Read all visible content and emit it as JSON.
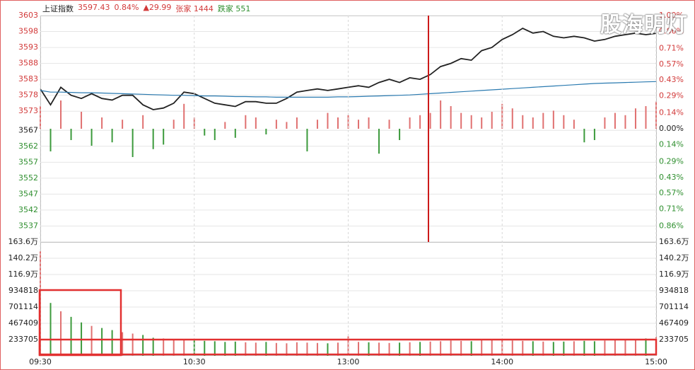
{
  "header": {
    "name": "上证指数",
    "price": "3597.43",
    "pct": "0.84%",
    "change": "▲29.99",
    "up_label": "张家",
    "up_count": "1444",
    "down_label": "跌家",
    "down_count": "551"
  },
  "watermark": "股海明灯",
  "chart_data": [
    {
      "type": "line",
      "x": [
        0,
        4,
        8,
        12,
        16,
        20,
        24,
        28,
        32,
        36,
        40,
        44,
        48,
        52,
        56,
        60,
        64,
        68,
        72,
        76,
        80,
        84,
        88,
        92,
        96,
        100,
        104,
        108,
        112,
        116,
        120,
        124,
        128,
        132,
        136,
        140,
        144,
        148,
        152,
        156,
        160,
        164,
        168,
        172,
        176,
        180,
        184,
        188,
        192,
        196,
        200,
        204,
        208,
        212,
        216,
        220,
        224,
        228,
        232,
        236,
        240
      ],
      "xlim": [
        0,
        240
      ],
      "ylim": [
        3532,
        3603
      ],
      "yticks": [
        3603,
        3598,
        3593,
        3588,
        3583,
        3578,
        3573,
        3567,
        3562,
        3557,
        3552,
        3547,
        3542,
        3537
      ],
      "y2lim": [
        -1,
        1
      ],
      "y2ticks": [
        {
          "value": 1,
          "label": "1.00%"
        },
        {
          "value": 0.86,
          "label": "0.86%"
        },
        {
          "value": 0.71,
          "label": "0.71%"
        },
        {
          "value": 0.57,
          "label": "0.57%"
        },
        {
          "value": 0.43,
          "label": "0.43%"
        },
        {
          "value": 0.29,
          "label": "0.29%"
        },
        {
          "value": 0.14,
          "label": "0.14%"
        },
        {
          "value": 0,
          "label": "0.00%"
        },
        {
          "value": -0.14,
          "label": "0.14%"
        },
        {
          "value": -0.29,
          "label": "0.29%"
        },
        {
          "value": -0.43,
          "label": "0.43%"
        },
        {
          "value": -0.57,
          "label": "0.57%"
        },
        {
          "value": -0.71,
          "label": "0.71%"
        },
        {
          "value": -0.86,
          "label": "0.86%"
        }
      ],
      "grid": true,
      "series": [
        {
          "type": "line",
          "color": "#222222",
          "values": [
            3580,
            3575,
            3580.5,
            3578,
            3577,
            3578.5,
            3577,
            3576.5,
            3578,
            3578,
            3575,
            3573.5,
            3574,
            3575.5,
            3579,
            3578.5,
            3577,
            3575.5,
            3575,
            3574.5,
            3576,
            3576,
            3575.5,
            3575.5,
            3577,
            3579,
            3579.5,
            3580,
            3579.5,
            3580,
            3580.5,
            3581,
            3580.5,
            3582,
            3583,
            3582,
            3583.5,
            3583,
            3584.5,
            3587,
            3588,
            3589.5,
            3589,
            3592,
            3593,
            3595.5,
            3597,
            3599,
            3597.5,
            3598,
            3596.5,
            3596,
            3596.5,
            3596,
            3595,
            3595.5,
            3596.5,
            3597,
            3597.5,
            3597,
            3597.43
          ]
        },
        {
          "type": "line",
          "color": "#2a7ab0",
          "values": [
            3579.5,
            3579,
            3579,
            3578.9,
            3578.8,
            3578.8,
            3578.7,
            3578.6,
            3578.5,
            3578.4,
            3578.3,
            3578.2,
            3578.1,
            3578,
            3578,
            3577.9,
            3577.8,
            3577.8,
            3577.7,
            3577.6,
            3577.6,
            3577.5,
            3577.5,
            3577.4,
            3577.4,
            3577.4,
            3577.4,
            3577.4,
            3577.4,
            3577.5,
            3577.5,
            3577.6,
            3577.7,
            3577.8,
            3577.9,
            3578,
            3578.1,
            3578.3,
            3578.5,
            3578.7,
            3578.9,
            3579.1,
            3579.3,
            3579.5,
            3579.7,
            3579.9,
            3580.1,
            3580.3,
            3580.5,
            3580.7,
            3580.9,
            3581.1,
            3581.3,
            3581.5,
            3581.7,
            3581.8,
            3581.9,
            3582,
            3582.1,
            3582.2,
            3582.3
          ]
        },
        {
          "type": "bar",
          "axis": "y2",
          "up_color": "#e07070",
          "down_color": "#3c9a3c",
          "values": [
            0.2,
            -0.2,
            0.25,
            -0.1,
            0.15,
            -0.15,
            0.1,
            -0.12,
            0.08,
            -0.25,
            0.12,
            -0.18,
            -0.14,
            0.08,
            0.22,
            0.1,
            -0.06,
            -0.1,
            0.06,
            -0.08,
            0.12,
            0.1,
            -0.05,
            0.08,
            0.06,
            0.1,
            -0.2,
            0.08,
            0.14,
            0.1,
            0.12,
            0.08,
            0.1,
            -0.22,
            0.08,
            -0.1,
            0.1,
            0.12,
            0.14,
            0.25,
            0.2,
            0.14,
            0.12,
            0.1,
            0.15,
            0.22,
            0.18,
            0.12,
            0.1,
            0.14,
            0.16,
            0.12,
            0.08,
            -0.12,
            -0.1,
            0.1,
            0.14,
            0.12,
            0.18,
            0.2,
            0.24
          ]
        }
      ]
    },
    {
      "type": "bar",
      "x": [
        0,
        4,
        8,
        12,
        16,
        20,
        24,
        28,
        32,
        36,
        40,
        44,
        48,
        52,
        56,
        60,
        64,
        68,
        72,
        76,
        80,
        84,
        88,
        92,
        96,
        100,
        104,
        108,
        112,
        116,
        120,
        124,
        128,
        132,
        136,
        140,
        144,
        148,
        152,
        156,
        160,
        164,
        168,
        172,
        176,
        180,
        184,
        188,
        192,
        196,
        200,
        204,
        208,
        212,
        216,
        220,
        224,
        228,
        232,
        236,
        240
      ],
      "xlim": [
        0,
        240
      ],
      "xticks": [
        {
          "value": 0,
          "label": "09:30"
        },
        {
          "value": 60,
          "label": "10:30"
        },
        {
          "value": 120,
          "label": "13:00"
        },
        {
          "value": 180,
          "label": "14:00"
        },
        {
          "value": 240,
          "label": "15:00"
        }
      ],
      "ylim": [
        0,
        1636000
      ],
      "yticks": [
        {
          "value": 1636000,
          "label": "163.6万"
        },
        {
          "value": 1402000,
          "label": "140.2万"
        },
        {
          "value": 1169000,
          "label": "116.9万"
        },
        934818,
        701114,
        467409,
        233705
      ],
      "grid": true,
      "up_color": "#e07070",
      "down_color": "#3c9a3c",
      "values": [
        1500000,
        760000,
        640000,
        560000,
        480000,
        430000,
        400000,
        370000,
        340000,
        320000,
        300000,
        260000,
        250000,
        240000,
        230000,
        220000,
        215000,
        210000,
        200000,
        205000,
        195000,
        190000,
        200000,
        185000,
        180000,
        195000,
        190000,
        185000,
        180000,
        190000,
        280000,
        200000,
        195000,
        190000,
        185000,
        190000,
        195000,
        200000,
        205000,
        210000,
        220000,
        215000,
        210000,
        225000,
        230000,
        225000,
        220000,
        215000,
        210000,
        205000,
        200000,
        205000,
        210000,
        215000,
        210000,
        220000,
        225000,
        230000,
        240000,
        250000,
        270000
      ]
    }
  ]
}
